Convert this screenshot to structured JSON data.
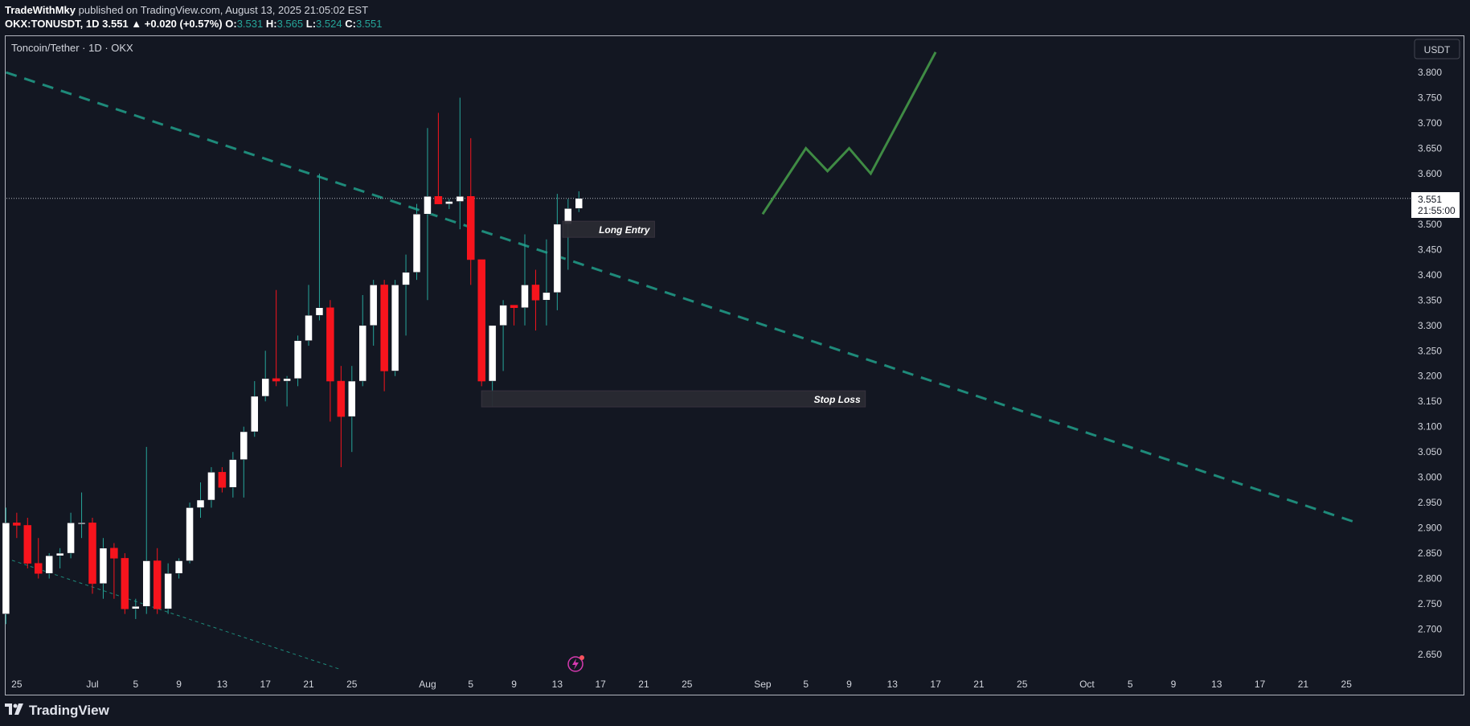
{
  "header": {
    "publisher": "TradeWithMky",
    "published_text": "published on TradingView.com, August 13, 2025 21:05:02 EST",
    "symbol": "OKX:TONUSDT, 1D",
    "last": "3.551",
    "change": "▲ +0.020 (+0.57%)",
    "o_label": "O:",
    "o_val": "3.531",
    "h_label": "H:",
    "h_val": "3.565",
    "l_label": "L:",
    "l_val": "3.524",
    "c_label": "C:",
    "c_val": "3.551"
  },
  "footer": {
    "brand": "TradingView",
    "logo_icon": "tradingview-logo-icon"
  },
  "colors": {
    "background": "#131722",
    "up": "#ffffff",
    "down": "#f7141d",
    "up_wick": "#26a69a",
    "trend": "#1e8a7a",
    "projection": "#3f8b44",
    "label_bg": "#2a2a32"
  },
  "chart_data": {
    "type": "candlestick",
    "title": "Toncoin/Tether · 1D · OKX",
    "currency_button": "USDT",
    "ylim": [
      2.62,
      3.84
    ],
    "y_ticks": [
      "3.800",
      "3.750",
      "3.700",
      "3.650",
      "3.600",
      "3.550",
      "3.500",
      "3.450",
      "3.400",
      "3.350",
      "3.300",
      "3.250",
      "3.200",
      "3.150",
      "3.100",
      "3.050",
      "3.000",
      "2.950",
      "2.900",
      "2.850",
      "2.800",
      "2.750",
      "2.700",
      "2.650"
    ],
    "x_ticks": [
      "25",
      "Jul",
      "5",
      "9",
      "13",
      "17",
      "21",
      "25",
      "Aug",
      "5",
      "9",
      "13",
      "17",
      "21",
      "25",
      "Sep",
      "5",
      "9",
      "13",
      "17",
      "21",
      "25",
      "Oct",
      "5",
      "9",
      "13",
      "17",
      "21",
      "25"
    ],
    "x_tick_days": [
      -7,
      0,
      4,
      8,
      12,
      16,
      20,
      24,
      31,
      35,
      39,
      43,
      47,
      51,
      55,
      62,
      66,
      70,
      74,
      78,
      82,
      86,
      92,
      96,
      100,
      104,
      108,
      112,
      116
    ],
    "price_label": "3.551",
    "countdown": "21:55:00",
    "last_price": 3.551,
    "candles": [
      {
        "d": -8,
        "o": 2.73,
        "h": 2.94,
        "l": 2.71,
        "c": 2.91
      },
      {
        "d": -7,
        "o": 2.91,
        "h": 2.93,
        "l": 2.88,
        "c": 2.905
      },
      {
        "d": -6,
        "o": 2.905,
        "h": 2.92,
        "l": 2.82,
        "c": 2.83
      },
      {
        "d": -5,
        "o": 2.83,
        "h": 2.88,
        "l": 2.8,
        "c": 2.81
      },
      {
        "d": -4,
        "o": 2.81,
        "h": 2.85,
        "l": 2.8,
        "c": 2.845
      },
      {
        "d": -3,
        "o": 2.845,
        "h": 2.86,
        "l": 2.82,
        "c": 2.85
      },
      {
        "d": -2,
        "o": 2.85,
        "h": 2.93,
        "l": 2.84,
        "c": 2.91
      },
      {
        "d": -1,
        "o": 2.91,
        "h": 2.97,
        "l": 2.88,
        "c": 2.91
      },
      {
        "d": 0,
        "o": 2.91,
        "h": 2.92,
        "l": 2.77,
        "c": 2.79
      },
      {
        "d": 1,
        "o": 2.79,
        "h": 2.88,
        "l": 2.76,
        "c": 2.86
      },
      {
        "d": 2,
        "o": 2.86,
        "h": 2.87,
        "l": 2.76,
        "c": 2.84
      },
      {
        "d": 3,
        "o": 2.84,
        "h": 2.85,
        "l": 2.73,
        "c": 2.74
      },
      {
        "d": 4,
        "o": 2.74,
        "h": 2.76,
        "l": 2.72,
        "c": 2.745
      },
      {
        "d": 5,
        "o": 2.745,
        "h": 3.06,
        "l": 2.73,
        "c": 2.835
      },
      {
        "d": 6,
        "o": 2.835,
        "h": 2.86,
        "l": 2.73,
        "c": 2.74
      },
      {
        "d": 7,
        "o": 2.74,
        "h": 2.83,
        "l": 2.73,
        "c": 2.81
      },
      {
        "d": 8,
        "o": 2.81,
        "h": 2.84,
        "l": 2.8,
        "c": 2.835
      },
      {
        "d": 9,
        "o": 2.835,
        "h": 2.95,
        "l": 2.83,
        "c": 2.94
      },
      {
        "d": 10,
        "o": 2.94,
        "h": 2.99,
        "l": 2.92,
        "c": 2.955
      },
      {
        "d": 11,
        "o": 2.955,
        "h": 3.02,
        "l": 2.94,
        "c": 3.01
      },
      {
        "d": 12,
        "o": 3.01,
        "h": 3.02,
        "l": 2.97,
        "c": 2.98
      },
      {
        "d": 13,
        "o": 2.98,
        "h": 3.05,
        "l": 2.96,
        "c": 3.035
      },
      {
        "d": 14,
        "o": 3.035,
        "h": 3.1,
        "l": 2.96,
        "c": 3.09
      },
      {
        "d": 15,
        "o": 3.09,
        "h": 3.19,
        "l": 3.08,
        "c": 3.16
      },
      {
        "d": 16,
        "o": 3.16,
        "h": 3.25,
        "l": 3.15,
        "c": 3.195
      },
      {
        "d": 17,
        "o": 3.195,
        "h": 3.37,
        "l": 3.18,
        "c": 3.19
      },
      {
        "d": 18,
        "o": 3.19,
        "h": 3.2,
        "l": 3.14,
        "c": 3.195
      },
      {
        "d": 19,
        "o": 3.195,
        "h": 3.28,
        "l": 3.18,
        "c": 3.27
      },
      {
        "d": 20,
        "o": 3.27,
        "h": 3.38,
        "l": 3.26,
        "c": 3.32
      },
      {
        "d": 21,
        "o": 3.32,
        "h": 3.6,
        "l": 3.31,
        "c": 3.335
      },
      {
        "d": 22,
        "o": 3.335,
        "h": 3.35,
        "l": 3.11,
        "c": 3.19
      },
      {
        "d": 23,
        "o": 3.19,
        "h": 3.22,
        "l": 3.02,
        "c": 3.12
      },
      {
        "d": 24,
        "o": 3.12,
        "h": 3.22,
        "l": 3.05,
        "c": 3.19
      },
      {
        "d": 25,
        "o": 3.19,
        "h": 3.36,
        "l": 3.18,
        "c": 3.3
      },
      {
        "d": 26,
        "o": 3.3,
        "h": 3.39,
        "l": 3.26,
        "c": 3.38
      },
      {
        "d": 27,
        "o": 3.38,
        "h": 3.39,
        "l": 3.17,
        "c": 3.21
      },
      {
        "d": 28,
        "o": 3.21,
        "h": 3.39,
        "l": 3.2,
        "c": 3.38
      },
      {
        "d": 29,
        "o": 3.38,
        "h": 3.44,
        "l": 3.28,
        "c": 3.405
      },
      {
        "d": 30,
        "o": 3.405,
        "h": 3.54,
        "l": 3.39,
        "c": 3.52
      },
      {
        "d": 31,
        "o": 3.52,
        "h": 3.69,
        "l": 3.35,
        "c": 3.555
      },
      {
        "d": 32,
        "o": 3.555,
        "h": 3.72,
        "l": 3.54,
        "c": 3.54
      },
      {
        "d": 33,
        "o": 3.54,
        "h": 3.55,
        "l": 3.53,
        "c": 3.545
      },
      {
        "d": 34,
        "o": 3.545,
        "h": 3.75,
        "l": 3.49,
        "c": 3.555
      },
      {
        "d": 35,
        "o": 3.555,
        "h": 3.67,
        "l": 3.38,
        "c": 3.43
      },
      {
        "d": 36,
        "o": 3.43,
        "h": 3.43,
        "l": 3.18,
        "c": 3.19
      },
      {
        "d": 37,
        "o": 3.19,
        "h": 3.3,
        "l": 3.14,
        "c": 3.3
      },
      {
        "d": 38,
        "o": 3.3,
        "h": 3.35,
        "l": 3.21,
        "c": 3.34
      },
      {
        "d": 39,
        "o": 3.34,
        "h": 3.34,
        "l": 3.3,
        "c": 3.335
      },
      {
        "d": 40,
        "o": 3.335,
        "h": 3.48,
        "l": 3.3,
        "c": 3.38
      },
      {
        "d": 41,
        "o": 3.38,
        "h": 3.41,
        "l": 3.29,
        "c": 3.35
      },
      {
        "d": 42,
        "o": 3.35,
        "h": 3.47,
        "l": 3.3,
        "c": 3.365
      },
      {
        "d": 43,
        "o": 3.365,
        "h": 3.56,
        "l": 3.33,
        "c": 3.5
      },
      {
        "d": 44,
        "o": 3.5,
        "h": 3.55,
        "l": 3.41,
        "c": 3.531
      },
      {
        "d": 45,
        "o": 3.531,
        "h": 3.565,
        "l": 3.524,
        "c": 3.551
      }
    ],
    "trendline_upper": [
      [
        -8,
        3.8
      ],
      [
        117,
        2.91
      ]
    ],
    "trendline_lower": [
      [
        -8,
        2.84
      ],
      [
        23,
        2.62
      ]
    ],
    "projection": [
      [
        62,
        3.52
      ],
      [
        66,
        3.65
      ],
      [
        68,
        3.605
      ],
      [
        70,
        3.65
      ],
      [
        72,
        3.6
      ],
      [
        78,
        3.84
      ]
    ],
    "annotations": [
      {
        "text": "Long Entry",
        "d1": 43.5,
        "d2": 52,
        "y": 3.49
      },
      {
        "text": "Stop Loss",
        "d1": 36,
        "d2": 71.5,
        "y": 3.155
      }
    ]
  }
}
